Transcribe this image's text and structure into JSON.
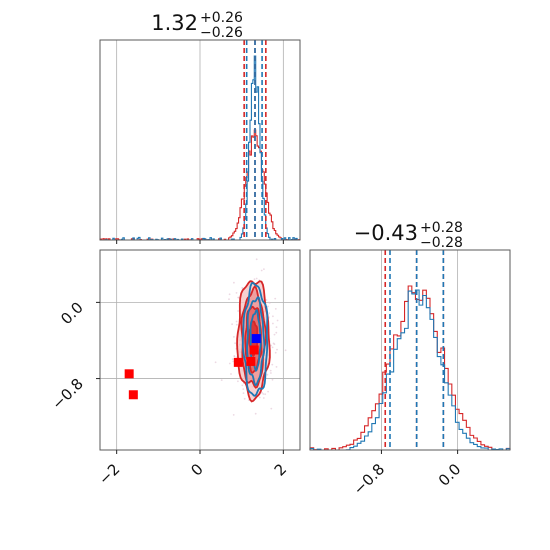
{
  "figure": {
    "type": "corner",
    "colors": {
      "blue": "#1f77b4",
      "red": "#d62728",
      "marker_blue": "#0000ff",
      "marker_red": "#ff0000"
    }
  },
  "chart_data": [
    {
      "id": "hist_x",
      "type": "histogram",
      "title": {
        "main": "1.32",
        "upper": "+0.26",
        "lower": "−0.26"
      },
      "xlim": [
        -2.4,
        2.4
      ],
      "xticks": [
        -2,
        0,
        2
      ],
      "grid": true,
      "series": [
        {
          "color": "blue",
          "mean": 1.32,
          "sd": 0.12,
          "quantiles": [
            1.12,
            1.32,
            1.49
          ]
        },
        {
          "color": "red",
          "mean": 1.32,
          "sd": 0.22,
          "quantiles": [
            1.06,
            1.32,
            1.58
          ],
          "outlier_bins": [
            -2.0,
            -1.6
          ]
        }
      ]
    },
    {
      "id": "hist_y",
      "type": "histogram",
      "title": {
        "main": "−0.43",
        "upper": "+0.28",
        "lower": "−0.28"
      },
      "xlim": [
        -1.55,
        0.55
      ],
      "xticks": [
        -0.8,
        0.0
      ],
      "xtick_labels": [
        "−0.8",
        "0.0"
      ],
      "grid": true,
      "series": [
        {
          "color": "blue",
          "mean": -0.43,
          "sd": 0.24,
          "quantiles": [
            -0.71,
            -0.43,
            -0.15
          ]
        },
        {
          "color": "red",
          "mean": -0.43,
          "sd": 0.27,
          "quantiles": [
            -0.76,
            -0.43,
            -0.15
          ]
        }
      ]
    },
    {
      "id": "joint",
      "type": "contour",
      "xlim": [
        -2.4,
        2.4
      ],
      "ylim": [
        -1.55,
        0.55
      ],
      "xticks": [
        -2,
        0,
        2
      ],
      "yticks": [
        0.0,
        -0.8
      ],
      "ytick_labels": [
        "0.0",
        "−0.8"
      ],
      "grid": true,
      "contours": [
        {
          "color": "red",
          "center": [
            1.28,
            -0.38
          ],
          "levels": [
            [
              0.38,
              0.62
            ],
            [
              0.28,
              0.5
            ],
            [
              0.19,
              0.34
            ],
            [
              0.1,
              0.18
            ]
          ]
        },
        {
          "color": "blue",
          "center": [
            1.33,
            -0.4
          ],
          "levels": [
            [
              0.29,
              0.58
            ],
            [
              0.2,
              0.44
            ],
            [
              0.12,
              0.3
            ]
          ]
        }
      ],
      "markers": [
        {
          "color": "marker_blue",
          "x": 1.35,
          "y": -0.38
        },
        {
          "color": "marker_red",
          "x": 0.92,
          "y": -0.63
        },
        {
          "color": "marker_red",
          "x": 1.22,
          "y": -0.62
        },
        {
          "color": "marker_red",
          "x": 1.3,
          "y": -0.5
        },
        {
          "color": "marker_red",
          "x": -1.7,
          "y": -0.75
        },
        {
          "color": "marker_red",
          "x": -1.6,
          "y": -0.97
        }
      ]
    }
  ]
}
